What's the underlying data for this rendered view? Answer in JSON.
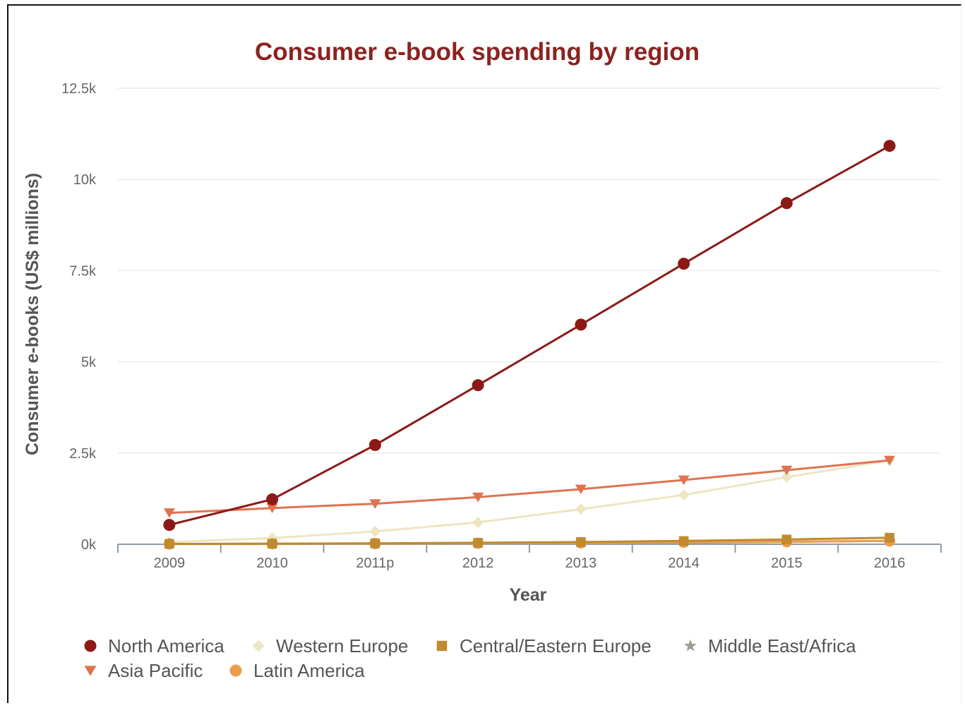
{
  "chart_data": {
    "type": "line",
    "title": "Consumer e-book spending by region",
    "xlabel": "Year",
    "ylabel": "Consumer e-books (US$ millions)",
    "categories": [
      "2009",
      "2010",
      "2011p",
      "2012",
      "2013",
      "2014",
      "2015",
      "2016"
    ],
    "ylim": [
      0,
      12500
    ],
    "yticks": [
      0,
      2500,
      5000,
      7500,
      10000,
      12500
    ],
    "ytick_labels": [
      "0k",
      "2.5k",
      "5k",
      "7.5k",
      "10k",
      "12.5k"
    ],
    "grid": true,
    "legend_position": "bottom",
    "series": [
      {
        "name": "North America",
        "color": "#8b1a16",
        "marker": "circle",
        "values": [
          530,
          1230,
          2720,
          4360,
          6020,
          7690,
          9350,
          10920
        ]
      },
      {
        "name": "Western Europe",
        "color": "#eee5c2",
        "marker": "diamond",
        "values": [
          60,
          170,
          350,
          600,
          960,
          1350,
          1840,
          2300
        ]
      },
      {
        "name": "Central/Eastern Europe",
        "color": "#c08a2e",
        "marker": "square",
        "values": [
          10,
          15,
          25,
          40,
          60,
          90,
          130,
          180
        ]
      },
      {
        "name": "Middle East/Africa",
        "color": "#a09d93",
        "marker": "star",
        "values": [
          5,
          8,
          12,
          20,
          30,
          45,
          65,
          90
        ]
      },
      {
        "name": "Asia Pacific",
        "color": "#df7350",
        "marker": "triangle-down",
        "values": [
          860,
          990,
          1110,
          1290,
          1510,
          1760,
          2030,
          2300
        ]
      },
      {
        "name": "Latin America",
        "color": "#eb9d4a",
        "marker": "circle",
        "values": [
          10,
          15,
          20,
          30,
          40,
          55,
          70,
          90
        ]
      }
    ]
  }
}
